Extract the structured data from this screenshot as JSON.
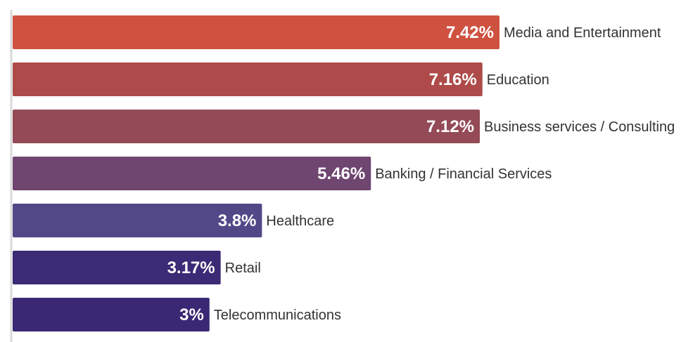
{
  "chart_data": {
    "type": "bar",
    "orientation": "horizontal",
    "categories": [
      "Media and Entertainment",
      "Education",
      "Business services / Consulting",
      "Banking / Financial Services",
      "Healthcare",
      "Retail",
      "Telecommunications"
    ],
    "values": [
      7.42,
      7.16,
      7.12,
      5.46,
      3.8,
      3.17,
      3
    ],
    "value_labels": [
      "7.42%",
      "7.16%",
      "7.12%",
      "5.46%",
      "3.8%",
      "3.17%",
      "3%"
    ],
    "colors": [
      "#cf5241",
      "#ae4a4a",
      "#944a57",
      "#6e4670",
      "#524888",
      "#3b2a75",
      "#3a2875"
    ],
    "title": "",
    "xlabel": "",
    "ylabel": "",
    "xlim": [
      0,
      7.42
    ],
    "grid": false,
    "legend": "none"
  }
}
